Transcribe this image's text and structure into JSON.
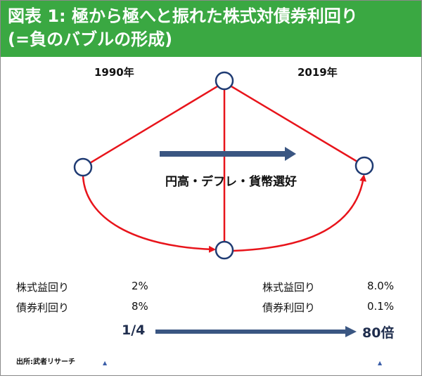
{
  "header": {
    "line1": "図表 1: 極から極へと振れた株式対債券利回り",
    "line2": "(=負のバブルの形成)"
  },
  "diagram": {
    "year_left": "1990年",
    "year_right": "2019年",
    "center_label": "円高・デフレ・貨幣選好",
    "left_block": {
      "row1_label": "株式益回り",
      "row1_value": "2%",
      "row2_label": "債券利回り",
      "row2_value": "8%"
    },
    "right_block": {
      "row1_label": "株式益回り",
      "row1_value": "8.0%",
      "row2_label": "債券利回り",
      "row2_value": "0.1%"
    },
    "ratio_from": "1/4",
    "ratio_to": "80倍",
    "source": "出所:武者リサーチ",
    "colors": {
      "header_bg": "#3aa842",
      "red_line": "#e8141b",
      "arrow_blue": "#3a5682",
      "node_stroke": "#1f3b73"
    }
  }
}
